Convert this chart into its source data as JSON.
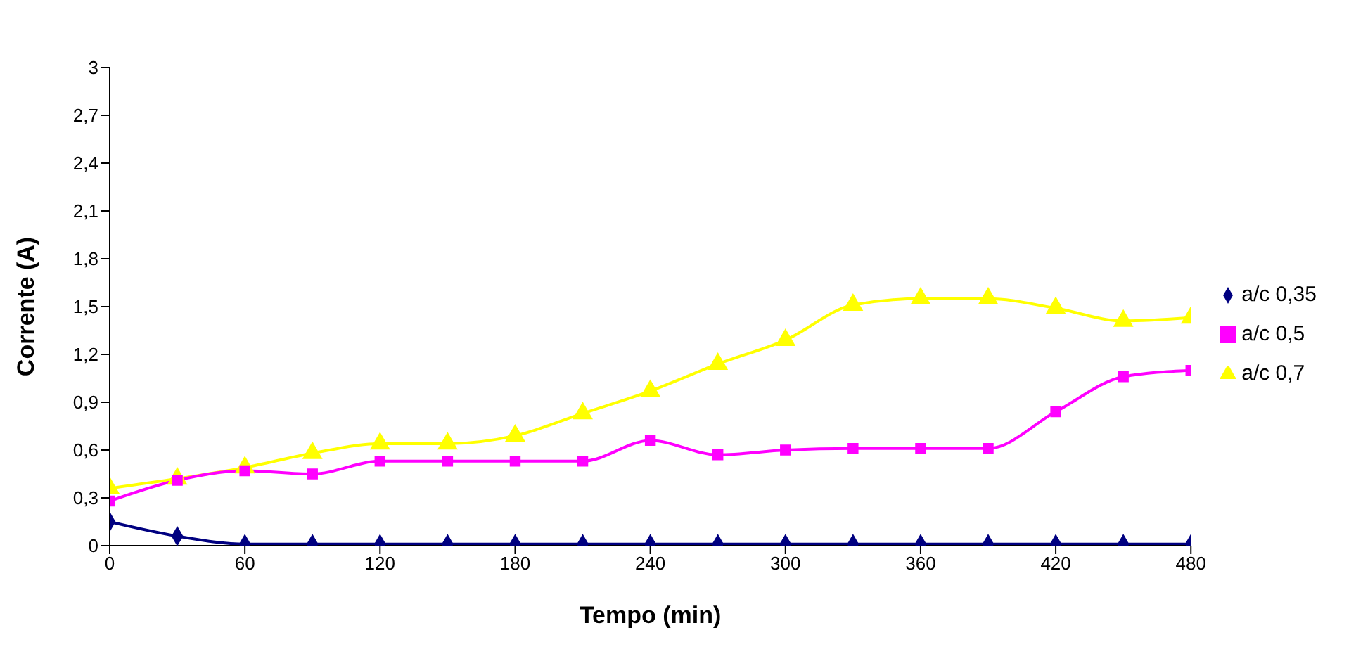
{
  "chart_data": {
    "type": "line",
    "xlabel": "Tempo (min)",
    "ylabel": "Corrente (A)",
    "x": [
      0,
      30,
      60,
      90,
      120,
      150,
      180,
      210,
      240,
      270,
      300,
      330,
      360,
      390,
      420,
      450,
      480
    ],
    "series": [
      {
        "name": "a/c 0,35",
        "color": "#000080",
        "marker": "diamond",
        "values": [
          0.15,
          0.06,
          0.01,
          0.01,
          0.01,
          0.01,
          0.01,
          0.01,
          0.01,
          0.01,
          0.01,
          0.01,
          0.01,
          0.01,
          0.01,
          0.01,
          0.01
        ]
      },
      {
        "name": "a/c 0,5",
        "color": "#ff00ff",
        "marker": "square",
        "values": [
          0.28,
          0.41,
          0.47,
          0.45,
          0.53,
          0.53,
          0.53,
          0.53,
          0.66,
          0.57,
          0.6,
          0.61,
          0.61,
          0.61,
          0.84,
          1.06,
          1.1
        ]
      },
      {
        "name": "a/c 0,7",
        "color": "#ffff00",
        "marker": "triangle",
        "values": [
          0.36,
          0.42,
          0.49,
          0.58,
          0.64,
          0.64,
          0.69,
          0.83,
          0.97,
          1.14,
          1.29,
          1.51,
          1.55,
          1.55,
          1.49,
          1.41,
          1.43
        ]
      }
    ],
    "xlim": [
      0,
      480
    ],
    "xticks": [
      0,
      60,
      120,
      180,
      240,
      300,
      360,
      420,
      480
    ],
    "ylim": [
      0,
      3
    ],
    "yticks": [
      0,
      {
        "value": 0.3,
        "label": "0,3"
      },
      {
        "value": 0.6,
        "label": "0,6"
      },
      {
        "value": 0.9,
        "label": "0,9"
      },
      {
        "value": 1.2,
        "label": "1,2"
      },
      {
        "value": 1.5,
        "label": "1,5"
      },
      {
        "value": 1.8,
        "label": "1,8"
      },
      {
        "value": 2.1,
        "label": "2,1"
      },
      {
        "value": 2.4,
        "label": "2,4"
      },
      {
        "value": 2.7,
        "label": "2,7"
      },
      3
    ],
    "grid": false,
    "legend": "right",
    "line_style": "solid"
  }
}
